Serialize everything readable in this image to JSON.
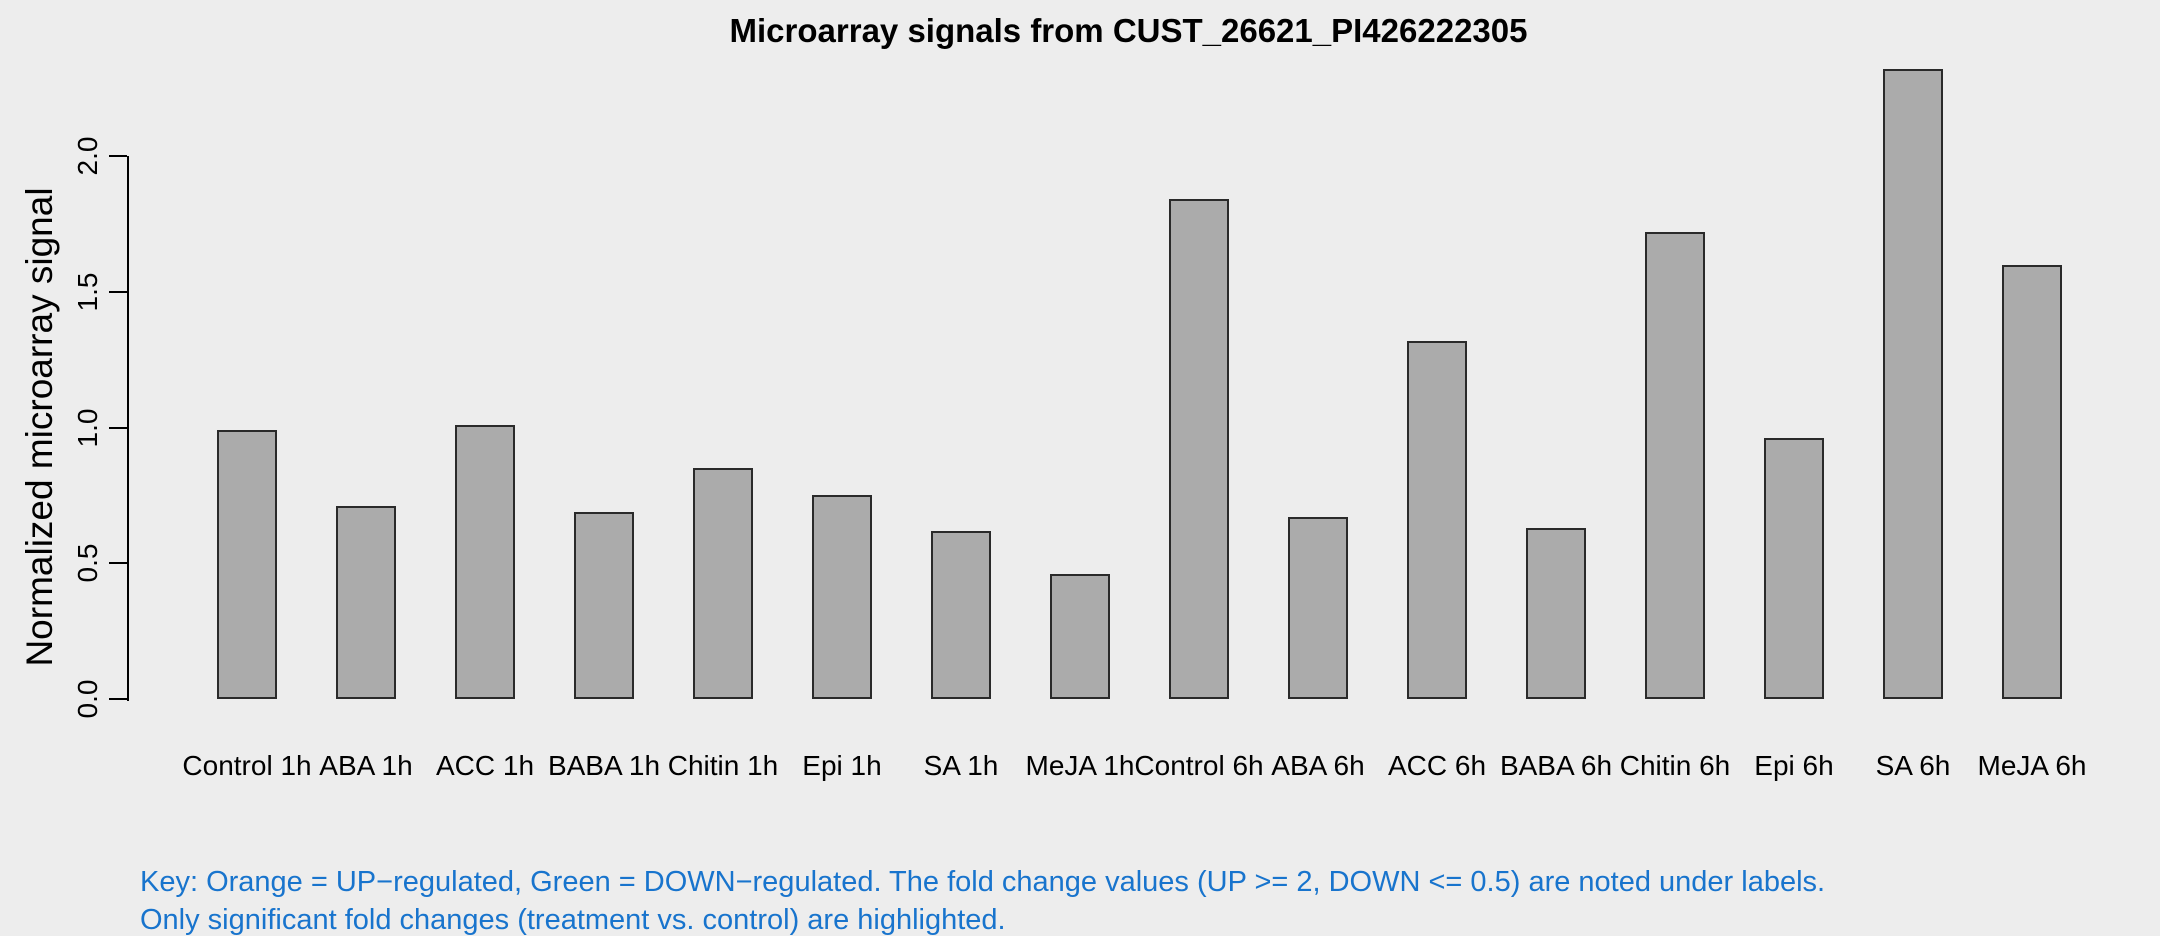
{
  "title": "Microarray signals from CUST_26621_PI426222305",
  "chart_data": {
    "type": "bar",
    "title": "Microarray signals from CUST_26621_PI426222305",
    "xlabel": "",
    "ylabel": "Normalized microarray signal",
    "categories": [
      "Control 1h",
      "ABA 1h",
      "ACC 1h",
      "BABA 1h",
      "Chitin 1h",
      "Epi 1h",
      "SA 1h",
      "MeJA 1h",
      "Control 6h",
      "ABA 6h",
      "ACC 6h",
      "BABA 6h",
      "Chitin 6h",
      "Epi 6h",
      "SA 6h",
      "MeJA 6h"
    ],
    "values": [
      0.99,
      0.71,
      1.01,
      0.69,
      0.85,
      0.75,
      0.62,
      0.46,
      1.84,
      0.67,
      1.32,
      0.63,
      1.72,
      0.96,
      2.32,
      1.6
    ],
    "yticks": [
      0.0,
      0.5,
      1.0,
      1.5,
      2.0
    ],
    "ylim": [
      0,
      2.4
    ],
    "grid": false,
    "legend": "none",
    "bar_fill_color": "#ABABAB",
    "bar_border_color": "#2a2a2a",
    "background_color": "#EDEDED",
    "axis_color": "#000000"
  },
  "footnote": {
    "line1": "Key: Orange = UP−regulated, Green = DOWN−regulated. The fold change values (UP >= 2, DOWN <= 0.5) are noted under labels.",
    "line2": "Only significant fold changes (treatment vs. control) are highlighted.",
    "color": "#1874CD"
  }
}
